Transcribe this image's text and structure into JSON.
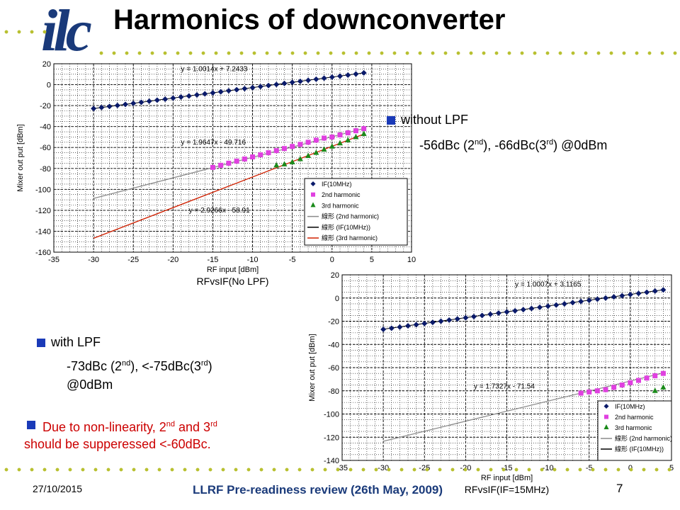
{
  "header": {
    "logo": "ilc",
    "title": "Harmonics of downconverter"
  },
  "colors": {
    "accent": "#b8c030",
    "bullet": "#1a3ab8",
    "footer": "#1a3a7a",
    "warn": "#cc0000"
  },
  "notes": {
    "without": {
      "heading": "without LPF",
      "l2a": "-56dBc (2",
      "sup1": "nd",
      "l2b": "), -66dBc(3",
      "sup2": "rd",
      "l2c": ") @0dBm"
    },
    "with": {
      "heading": "with LPF",
      "l2a": "-73dBc (2",
      "sup1": "nd",
      "l2b": "), <-75dBc(3",
      "sup2": "rd",
      "l2c": ")",
      "l3": "@0dBm"
    },
    "due": {
      "a": "Due to non-linearity, 2",
      "sup1": "nd",
      "b": " and 3",
      "sup2": "rd",
      "c": "should be supperessed <-60dBc."
    }
  },
  "footer": {
    "date": "27/10/2015",
    "center": "LLRF Pre-readiness review (26th May, 2009)",
    "page": "7"
  },
  "chart_data": [
    {
      "type": "scatter",
      "title": "RFvsIF(No LPF)",
      "xlabel": "RF input [dBm]",
      "ylabel": "Mixer out put [dBm]",
      "xlim": [
        -35,
        10
      ],
      "ylim": [
        -160,
        20
      ],
      "xticks": [
        -35,
        -30,
        -25,
        -20,
        -15,
        -10,
        -5,
        0,
        5,
        10
      ],
      "yticks": [
        20,
        0,
        -20,
        -40,
        -60,
        -80,
        -100,
        -120,
        -140,
        -160
      ],
      "grid": true,
      "legend_position": "bottom-right",
      "series": [
        {
          "name": "IF(10MHz)",
          "marker": "diamond",
          "color": "#0a1a6a",
          "x": [
            -30,
            -29,
            -28,
            -27,
            -26,
            -25,
            -24,
            -23,
            -22,
            -21,
            -20,
            -19,
            -18,
            -17,
            -16,
            -15,
            -14,
            -13,
            -12,
            -11,
            -10,
            -9,
            -8,
            -7,
            -6,
            -5,
            -4,
            -3,
            -2,
            -1,
            0,
            1,
            2,
            3,
            4
          ],
          "y": [
            -22.8,
            -21.8,
            -20.8,
            -19.8,
            -18.8,
            -17.8,
            -16.8,
            -15.8,
            -14.8,
            -13.8,
            -12.8,
            -11.8,
            -10.8,
            -9.8,
            -8.8,
            -7.8,
            -6.8,
            -5.8,
            -4.8,
            -3.8,
            -2.8,
            -1.8,
            -0.8,
            0.2,
            1.2,
            2.2,
            3.2,
            4.2,
            5.2,
            6.2,
            7.2,
            8.2,
            9.2,
            10.2,
            11.3
          ]
        },
        {
          "name": "2nd harmonic",
          "marker": "square",
          "color": "#e040e0",
          "x": [
            -15,
            -14,
            -13,
            -12,
            -11,
            -10,
            -9,
            -8,
            -7,
            -6,
            -5,
            -4,
            -3,
            -2,
            -1,
            0,
            1,
            2,
            3,
            4
          ],
          "y": [
            -79,
            -77,
            -75,
            -73,
            -71,
            -69,
            -67,
            -65,
            -63,
            -61,
            -59,
            -57,
            -55,
            -53,
            -51,
            -50,
            -48,
            -46,
            -44,
            -42
          ]
        },
        {
          "name": "3rd harmonic",
          "marker": "triangle",
          "color": "#1a8a1a",
          "x": [
            -7,
            -6,
            -5,
            -4,
            -3,
            -2,
            -1,
            0,
            1,
            2,
            3,
            4
          ],
          "y": [
            -77,
            -76,
            -74,
            -71,
            -68,
            -65,
            -62,
            -59,
            -56,
            -53,
            -50,
            -47
          ]
        },
        {
          "name": "線形 (2nd harmonic)",
          "line": true,
          "color": "#8a8a8a",
          "slope": 1.9647,
          "intercept": -49.716,
          "equation": "y = 1.9647x - 49.716"
        },
        {
          "name": "線形 (IF(10MHz))",
          "line": true,
          "color": "#000000",
          "slope": 1.0014,
          "intercept": 7.2433,
          "equation": "y = 1.0014x + 7.2433"
        },
        {
          "name": "線形 (3rd harmonic)",
          "line": true,
          "color": "#d02000",
          "slope": 2.9266,
          "intercept": -58.91,
          "equation": "y = 2.9266x - 58.91"
        }
      ]
    },
    {
      "type": "scatter",
      "title": "RFvsIF(IF=15MHz)",
      "xlabel": "RF input [dBm]",
      "ylabel": "Mixer out put [dBm]",
      "xlim": [
        -35,
        5
      ],
      "ylim": [
        -140,
        20
      ],
      "xticks": [
        -35,
        -30,
        -25,
        -20,
        -15,
        -10,
        -5,
        0,
        5
      ],
      "yticks": [
        20,
        0,
        -20,
        -40,
        -60,
        -80,
        -100,
        -120,
        -140
      ],
      "grid": true,
      "legend_position": "bottom-right",
      "series": [
        {
          "name": "IF(10MHz)",
          "marker": "diamond",
          "color": "#0a1a6a",
          "x": [
            -30,
            -29,
            -28,
            -27,
            -26,
            -25,
            -24,
            -23,
            -22,
            -21,
            -20,
            -19,
            -18,
            -17,
            -16,
            -15,
            -14,
            -13,
            -12,
            -11,
            -10,
            -9,
            -8,
            -7,
            -6,
            -5,
            -4,
            -3,
            -2,
            -1,
            0,
            1,
            2,
            3,
            4
          ],
          "y": [
            -27,
            -26,
            -25,
            -24,
            -23,
            -22,
            -21,
            -20,
            -19,
            -18,
            -17,
            -16,
            -15,
            -14,
            -13,
            -12,
            -11,
            -10,
            -9,
            -8,
            -7,
            -6,
            -5,
            -4,
            -3,
            -2,
            -1,
            0,
            1,
            2,
            3,
            4,
            5,
            6,
            7
          ]
        },
        {
          "name": "2nd harmonic",
          "marker": "square",
          "color": "#e040e0",
          "x": [
            -6,
            -5,
            -4,
            -3,
            -2,
            -1,
            0,
            1,
            2,
            3,
            4
          ],
          "y": [
            -82,
            -81,
            -80,
            -79,
            -77,
            -75,
            -73,
            -71,
            -69,
            -67,
            -65
          ]
        },
        {
          "name": "3rd harmonic",
          "marker": "triangle",
          "color": "#1a8a1a",
          "x": [
            3,
            4
          ],
          "y": [
            -80,
            -77
          ]
        },
        {
          "name": "線形 (2nd harmonic)",
          "line": true,
          "color": "#8a8a8a",
          "slope": 1.7327,
          "intercept": -71.54,
          "equation": "y = 1.7327x - 71.54"
        },
        {
          "name": "線形 (IF(10MHz))",
          "line": true,
          "color": "#000000",
          "slope": 1.0007,
          "intercept": 3.1165,
          "equation": "y = 1.0007x + 3.1165"
        }
      ]
    }
  ]
}
